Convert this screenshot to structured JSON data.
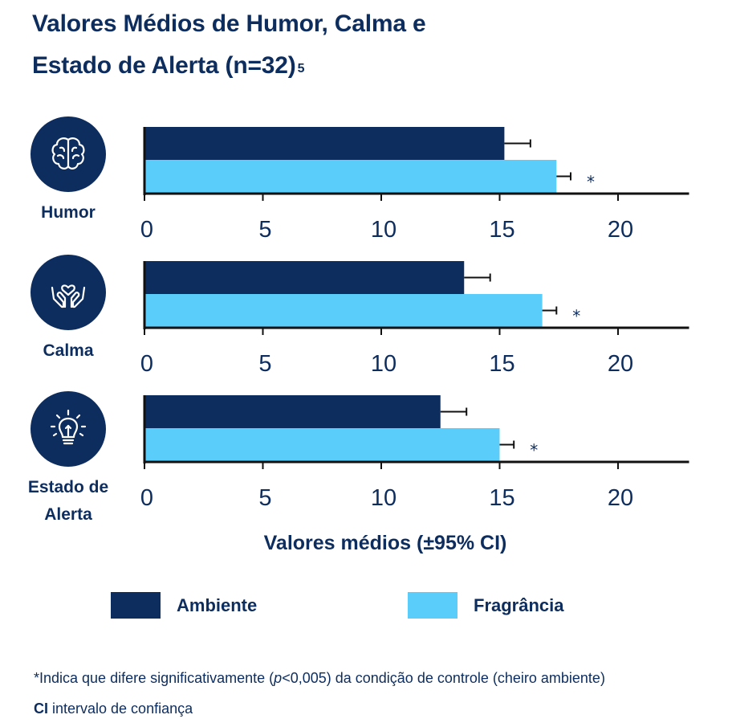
{
  "title_line1": "Valores Médios de Humor, Calma e",
  "title_line2": "Estado de Alerta (n=32)",
  "title_superscript": "5",
  "axis_title": "Valores médios (±95% CI)",
  "legend": [
    {
      "label": "Ambiente",
      "color": "#0d2d5e"
    },
    {
      "label": "Fragrância",
      "color": "#5bcdfb"
    }
  ],
  "footnote_prefix": "*Indica que difere significativamente (",
  "footnote_p": "p",
  "footnote_suffix": "<0,005) da condição de controle (cheiro ambiente)",
  "ci_abbrev": "CI",
  "ci_text": " intervalo de confiança",
  "categories": [
    {
      "label_lines": [
        "Humor"
      ],
      "icon": "brain-icon"
    },
    {
      "label_lines": [
        "Calma"
      ],
      "icon": "heart-hands-icon"
    },
    {
      "label_lines": [
        "Estado de",
        "Alerta"
      ],
      "icon": "lightbulb-icon"
    }
  ],
  "chart_data": {
    "type": "bar",
    "orientation": "horizontal",
    "categories": [
      "Humor",
      "Calma",
      "Estado de Alerta"
    ],
    "series": [
      {
        "name": "Ambiente",
        "color": "#0d2d5e",
        "values": [
          15.2,
          13.5,
          12.5
        ],
        "ci_upper": [
          16.3,
          14.6,
          13.6
        ]
      },
      {
        "name": "Fragrância",
        "color": "#5bcdfb",
        "values": [
          17.4,
          16.8,
          15.0
        ],
        "ci_upper": [
          18.0,
          17.4,
          15.6
        ]
      }
    ],
    "significance_marker": "*",
    "xlabel": "Valores médios (±95% CI)",
    "xlim": [
      0,
      23
    ],
    "xticks": [
      0,
      5,
      10,
      15,
      20
    ],
    "grid": false,
    "legend_position": "bottom"
  }
}
